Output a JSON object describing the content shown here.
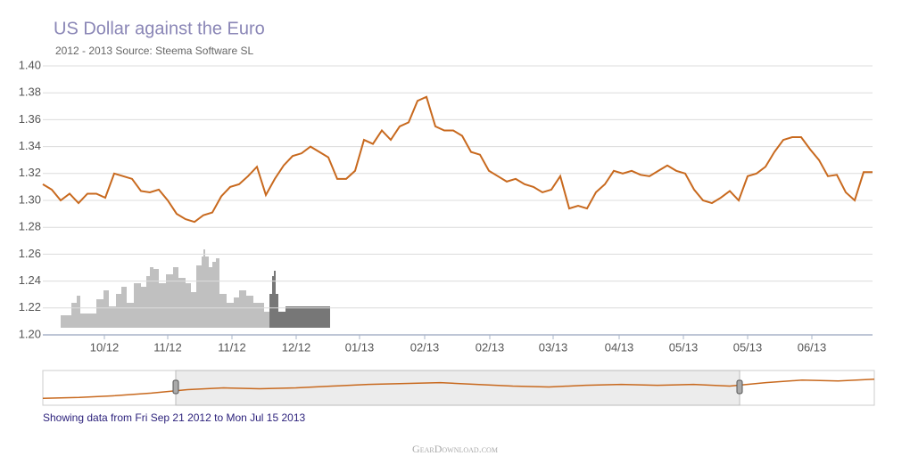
{
  "chart_data": {
    "type": "line",
    "title": "US Dollar against the Euro",
    "subtitle": "2012 - 2013 Source: Steema Software SL",
    "footer": "Showing data from Fri Sep 21 2012 to Mon Jul 15 2013",
    "watermark": "GearDownload.com",
    "grid": true,
    "xlim": [
      0,
      93
    ],
    "xticks": [
      {
        "value": 6.9,
        "label": "10/12"
      },
      {
        "value": 14,
        "label": "11/12"
      },
      {
        "value": 21.2,
        "label": "11/12"
      },
      {
        "value": 28.4,
        "label": "12/12"
      },
      {
        "value": 35.5,
        "label": "01/13"
      },
      {
        "value": 42.8,
        "label": "02/13"
      },
      {
        "value": 50.1,
        "label": "02/13"
      },
      {
        "value": 57.2,
        "label": "03/13"
      },
      {
        "value": 64.6,
        "label": "04/13"
      },
      {
        "value": 71.8,
        "label": "05/13"
      },
      {
        "value": 79,
        "label": "05/13"
      },
      {
        "value": 86.2,
        "label": "06/13"
      }
    ],
    "ylim": [
      1.2,
      1.4
    ],
    "yticks": [
      {
        "value": 1.2,
        "label": "1.20"
      },
      1.22,
      1.24,
      1.26,
      1.28,
      {
        "value": 1.3,
        "label": "1.30"
      },
      1.32,
      1.34,
      1.36,
      1.38,
      {
        "value": 1.4,
        "label": "1.40"
      }
    ],
    "series": [
      {
        "color": "#c8691e",
        "values": [
          1.312,
          1.308,
          1.3,
          1.305,
          1.298,
          1.305,
          1.305,
          1.302,
          1.32,
          1.318,
          1.316,
          1.307,
          1.306,
          1.308,
          1.3,
          1.29,
          1.286,
          1.284,
          1.289,
          1.291,
          1.303,
          1.31,
          1.312,
          1.318,
          1.325,
          1.304,
          1.316,
          1.326,
          1.333,
          1.335,
          1.34,
          1.336,
          1.332,
          1.316,
          1.316,
          1.322,
          1.345,
          1.342,
          1.352,
          1.345,
          1.355,
          1.358,
          1.374,
          1.377,
          1.355,
          1.352,
          1.352,
          1.348,
          1.336,
          1.334,
          1.322,
          1.318,
          1.314,
          1.316,
          1.312,
          1.31,
          1.306,
          1.308,
          1.318,
          1.294,
          1.296,
          1.294,
          1.306,
          1.312,
          1.322,
          1.32,
          1.322,
          1.319,
          1.318,
          1.322,
          1.326,
          1.322,
          1.32,
          1.308,
          1.3,
          1.298,
          1.302,
          1.307,
          1.3,
          1.318,
          1.32,
          1.325,
          1.336,
          1.345,
          1.347,
          1.347,
          1.338,
          1.33,
          1.318,
          1.319,
          1.306,
          1.3,
          1.321,
          1.321
        ]
      }
    ],
    "navigator": {
      "color": "#c8691e",
      "ylim": [
        1.2,
        1.4
      ],
      "values": [
        1.24,
        1.245,
        1.255,
        1.27,
        1.29,
        1.3,
        1.295,
        1.3,
        1.31,
        1.32,
        1.325,
        1.33,
        1.32,
        1.31,
        1.305,
        1.315,
        1.32,
        1.315,
        1.32,
        1.31,
        1.33,
        1.345,
        1.34,
        1.35
      ]
    }
  }
}
